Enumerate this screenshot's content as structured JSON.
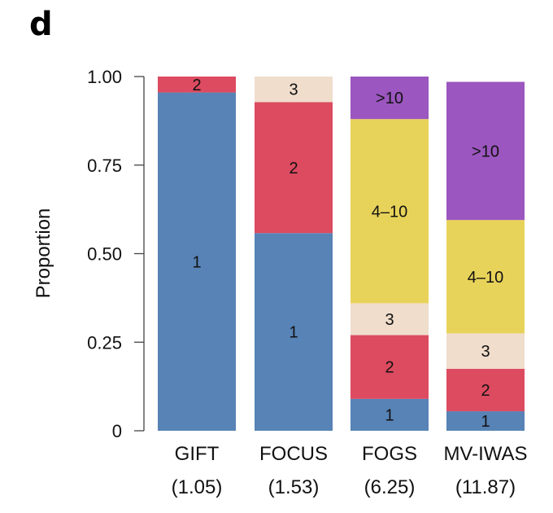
{
  "panel_label": "d",
  "chart_data": {
    "type": "bar",
    "stacked": true,
    "normalized": true,
    "ylabel": "Proportion",
    "ylim": [
      0,
      1
    ],
    "yticks": [
      0,
      0.25,
      0.5,
      0.75,
      1.0
    ],
    "ytick_labels": [
      "0",
      "0.25",
      "0.50",
      "0.75",
      "1.00"
    ],
    "categories": [
      {
        "name": "GIFT",
        "sub": "(1.05)"
      },
      {
        "name": "FOCUS",
        "sub": "(1.53)"
      },
      {
        "name": "FOGS",
        "sub": "(6.25)"
      },
      {
        "name": "MV-IWAS",
        "sub": "(11.87)"
      }
    ],
    "colors": {
      "1": "#5783b6",
      "2": "#dc4b60",
      "3": "#f0ddcc",
      "4–10": "#e8d35a",
      ">10": "#9b56bf"
    },
    "series": [
      {
        "label": "1",
        "values": [
          0.955,
          0.558,
          0.09,
          0.055
        ]
      },
      {
        "label": "2",
        "values": [
          0.045,
          0.37,
          0.18,
          0.12
        ]
      },
      {
        "label": "3",
        "values": [
          0,
          0.072,
          0.09,
          0.1
        ]
      },
      {
        "label": "4–10",
        "values": [
          0,
          0,
          0.52,
          0.32
        ]
      },
      {
        "label": ">10",
        "values": [
          0,
          0,
          0.12,
          0.39
        ]
      }
    ],
    "grid": false,
    "legend": "none"
  }
}
